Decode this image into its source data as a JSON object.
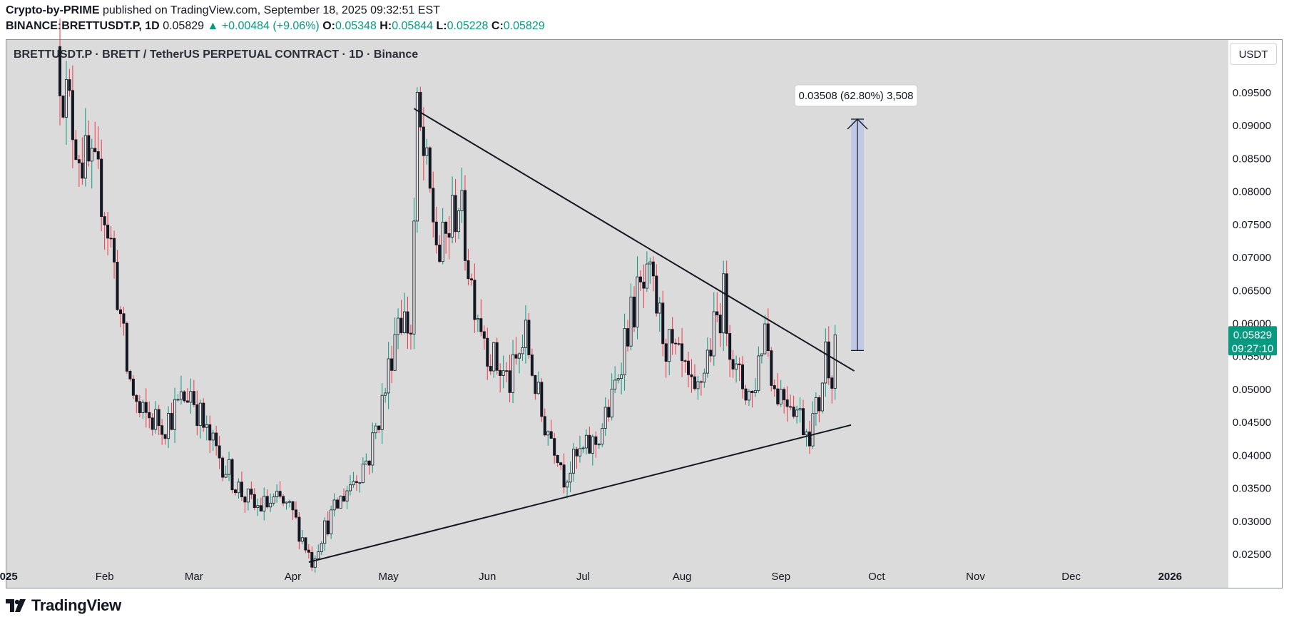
{
  "header": {
    "publisher": "Crypto-by-PRIME",
    "published_text": " published on TradingView.com, September 18, 2025 09:32:51 EST",
    "symbol_line": "BINANCE:BRETTUSDT.P, 1D",
    "last": "0.05829",
    "change": "▲ +0.00484 (+9.06%)",
    "o_label": "O:",
    "o": "0.05348",
    "h_label": "H:",
    "h": "0.05844",
    "l_label": "L:",
    "l": "0.05228",
    "c_label": "C:",
    "c": "0.05829"
  },
  "chart_title": "BRETTUSDT.P · BRETT / TetherUS PERPETUAL CONTRACT · 1D · Binance",
  "currency_button": "USDT",
  "price_badge": {
    "price": "0.05829",
    "countdown": "09:27:10"
  },
  "measure_label": "0.03508 (62.80%) 3,508",
  "brand": "TradingView",
  "colors": {
    "up": "#089981",
    "down": "#f23645",
    "plot_bg": "#dbdbdb",
    "measure_fill": "#c0cae6"
  },
  "chart_data": {
    "type": "candlestick",
    "y_axis_ticks": [
      "0.09500",
      "0.09000",
      "0.08500",
      "0.08000",
      "0.07500",
      "0.07000",
      "0.06500",
      "0.06000",
      "0.05500",
      "0.05000",
      "0.04500",
      "0.04000",
      "0.03500",
      "0.03000",
      "0.02500"
    ],
    "x_axis_ticks": [
      "2025",
      "Feb",
      "Mar",
      "Apr",
      "May",
      "Jun",
      "Jul",
      "Aug",
      "Sep",
      "Oct",
      "Nov",
      "Dec",
      "2026"
    ],
    "ylim": [
      0.0235,
      0.0988
    ],
    "close_path": [
      [
        "2025-01-17",
        0.102
      ],
      [
        "2025-01-20",
        0.094
      ],
      [
        "2025-01-25",
        0.085
      ],
      [
        "2025-01-31",
        0.08
      ],
      [
        "2025-02-03",
        0.072
      ],
      [
        "2025-02-05",
        0.065
      ],
      [
        "2025-02-08",
        0.053
      ],
      [
        "2025-02-12",
        0.046
      ],
      [
        "2025-02-20",
        0.045
      ],
      [
        "2025-02-28",
        0.05
      ],
      [
        "2025-03-05",
        0.043
      ],
      [
        "2025-03-10",
        0.039
      ],
      [
        "2025-03-15",
        0.035
      ],
      [
        "2025-03-20",
        0.032
      ],
      [
        "2025-03-28",
        0.033
      ],
      [
        "2025-04-01",
        0.031
      ],
      [
        "2025-04-07",
        0.024
      ],
      [
        "2025-04-10",
        0.028
      ],
      [
        "2025-04-18",
        0.035
      ],
      [
        "2025-04-25",
        0.04
      ],
      [
        "2025-04-30",
        0.05
      ],
      [
        "2025-05-04",
        0.062
      ],
      [
        "2025-05-08",
        0.059
      ],
      [
        "2025-05-10",
        0.091
      ],
      [
        "2025-05-13",
        0.082
      ],
      [
        "2025-05-17",
        0.07
      ],
      [
        "2025-05-23",
        0.079
      ],
      [
        "2025-05-27",
        0.066
      ],
      [
        "2025-06-02",
        0.055
      ],
      [
        "2025-06-08",
        0.051
      ],
      [
        "2025-06-13",
        0.058
      ],
      [
        "2025-06-18",
        0.046
      ],
      [
        "2025-06-23",
        0.041
      ],
      [
        "2025-06-25",
        0.037
      ],
      [
        "2025-06-30",
        0.04
      ],
      [
        "2025-07-05",
        0.042
      ],
      [
        "2025-07-10",
        0.048
      ],
      [
        "2025-07-14",
        0.058
      ],
      [
        "2025-07-18",
        0.064
      ],
      [
        "2025-07-22",
        0.066
      ],
      [
        "2025-07-27",
        0.057
      ],
      [
        "2025-08-01",
        0.053
      ],
      [
        "2025-08-05",
        0.048
      ],
      [
        "2025-08-10",
        0.057
      ],
      [
        "2025-08-14",
        0.064
      ],
      [
        "2025-08-18",
        0.052
      ],
      [
        "2025-08-23",
        0.049
      ],
      [
        "2025-08-27",
        0.06
      ],
      [
        "2025-08-30",
        0.05
      ],
      [
        "2025-09-04",
        0.049
      ],
      [
        "2025-09-08",
        0.045
      ],
      [
        "2025-09-10",
        0.044
      ],
      [
        "2025-09-13",
        0.048
      ],
      [
        "2025-09-15",
        0.056
      ],
      [
        "2025-09-17",
        0.053
      ],
      [
        "2025-09-18",
        0.05829
      ]
    ],
    "trendlines": [
      {
        "name": "descending-resistance",
        "from": [
          "2025-05-09",
          0.0926
        ],
        "to": [
          "2025-09-24",
          0.0528
        ]
      },
      {
        "name": "ascending-support",
        "from": [
          "2025-04-06",
          0.0238
        ],
        "to": [
          "2025-09-23",
          0.0446
        ]
      }
    ],
    "measure": {
      "from_date": "2025-09-23",
      "to_date": "2025-09-27",
      "low": 0.0559,
      "high": 0.091
    }
  }
}
